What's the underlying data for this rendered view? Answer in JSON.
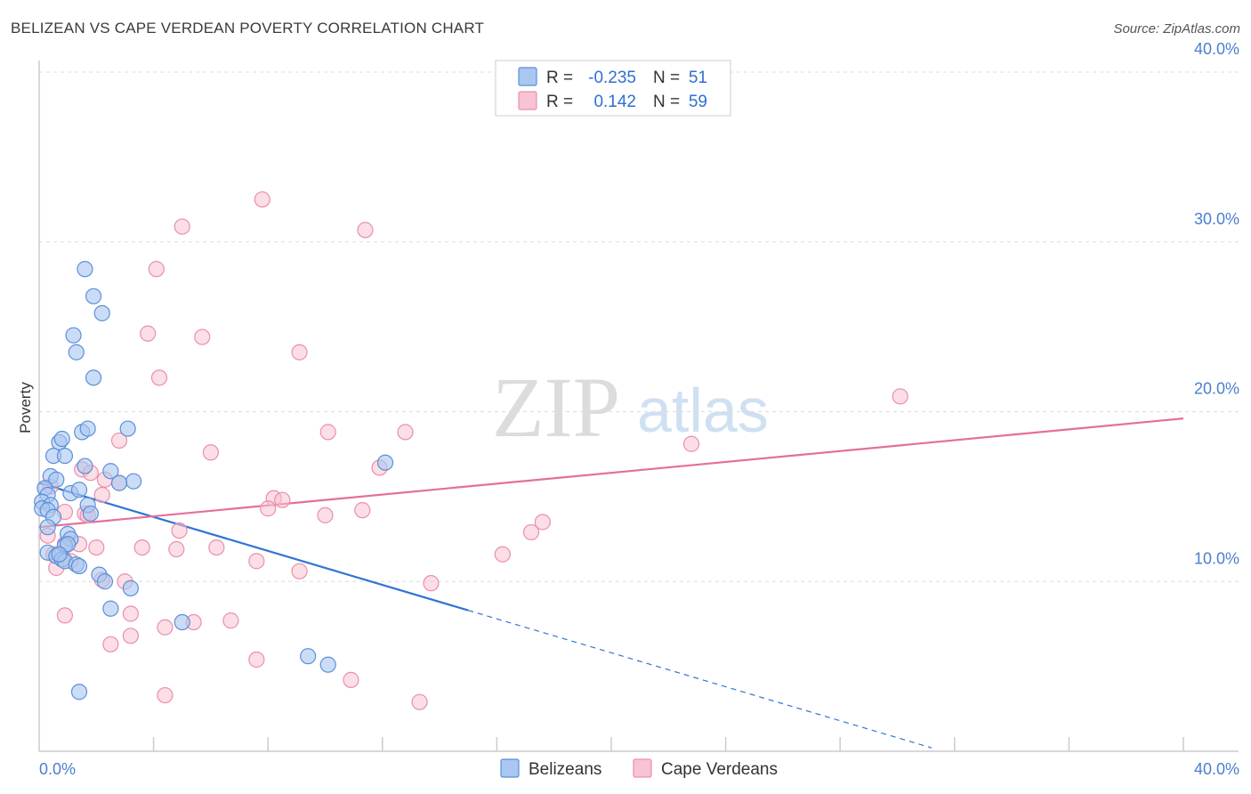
{
  "title": "BELIZEAN VS CAPE VERDEAN POVERTY CORRELATION CHART",
  "source": "Source: ZipAtlas.com",
  "watermark": {
    "part1": "ZIP",
    "part2": "atlas"
  },
  "legend": {
    "r_label": "R =",
    "n_label": "N =",
    "rows": [
      {
        "r": "-0.235",
        "n": "51"
      },
      {
        "r": "0.142",
        "n": "59"
      }
    ]
  },
  "colors": {
    "belizean_fill": "#a9c7f0",
    "belizean_stroke": "#5b8fd9",
    "belizean_line": "#2f74d3",
    "capeverdean_fill": "#f8c3d2",
    "capeverdean_stroke": "#ea8fab",
    "capeverdean_line": "#e56f99",
    "grid": "#dcdcdc",
    "tick_text": "#4a7fd0"
  },
  "chart_data": {
    "type": "scatter",
    "title": "BELIZEAN VS CAPE VERDEAN POVERTY CORRELATION CHART",
    "xlabel": "",
    "ylabel": "Poverty",
    "xlim": [
      0,
      40
    ],
    "ylim": [
      0,
      40
    ],
    "x_tick_labels": [
      "0.0%",
      "40.0%"
    ],
    "y_ticks": [
      10,
      20,
      30,
      40
    ],
    "y_tick_labels": [
      "10.0%",
      "20.0%",
      "30.0%",
      "40.0%"
    ],
    "grid": "horizontal dashed",
    "series": [
      {
        "name": "Belizeans",
        "r": -0.235,
        "n": 51,
        "trend": {
          "x0": 0.0,
          "y0": 15.8,
          "x1": 15.0,
          "y1": 8.3,
          "dashed_to_x": 31.2
        },
        "points": [
          [
            1.6,
            28.4
          ],
          [
            1.9,
            26.8
          ],
          [
            2.2,
            25.8
          ],
          [
            1.2,
            24.5
          ],
          [
            1.3,
            23.5
          ],
          [
            1.9,
            22.0
          ],
          [
            1.5,
            18.8
          ],
          [
            1.7,
            19.0
          ],
          [
            3.1,
            19.0
          ],
          [
            0.7,
            18.2
          ],
          [
            0.8,
            18.4
          ],
          [
            0.5,
            17.4
          ],
          [
            0.9,
            17.4
          ],
          [
            1.6,
            16.8
          ],
          [
            2.5,
            16.5
          ],
          [
            0.4,
            16.2
          ],
          [
            0.6,
            16.0
          ],
          [
            3.3,
            15.9
          ],
          [
            2.8,
            15.8
          ],
          [
            0.2,
            15.5
          ],
          [
            1.1,
            15.2
          ],
          [
            1.4,
            15.4
          ],
          [
            0.3,
            15.1
          ],
          [
            0.1,
            14.7
          ],
          [
            0.4,
            14.5
          ],
          [
            0.1,
            14.3
          ],
          [
            1.7,
            14.5
          ],
          [
            0.3,
            14.2
          ],
          [
            1.8,
            14.0
          ],
          [
            0.5,
            13.8
          ],
          [
            0.3,
            13.2
          ],
          [
            1.0,
            12.8
          ],
          [
            1.1,
            12.5
          ],
          [
            0.9,
            12.1
          ],
          [
            0.3,
            11.7
          ],
          [
            0.6,
            11.5
          ],
          [
            0.8,
            11.3
          ],
          [
            0.9,
            11.2
          ],
          [
            1.3,
            11.0
          ],
          [
            1.4,
            10.9
          ],
          [
            2.1,
            10.4
          ],
          [
            2.3,
            10.0
          ],
          [
            3.2,
            9.6
          ],
          [
            2.5,
            8.4
          ],
          [
            5.0,
            7.6
          ],
          [
            9.4,
            5.6
          ],
          [
            10.1,
            5.1
          ],
          [
            1.4,
            3.5
          ],
          [
            12.1,
            17.0
          ],
          [
            1.0,
            12.2
          ],
          [
            0.7,
            11.6
          ]
        ]
      },
      {
        "name": "Cape Verdeans",
        "r": 0.142,
        "n": 59,
        "trend": {
          "x0": 0.0,
          "y0": 13.2,
          "x1": 40.0,
          "y1": 19.6
        },
        "points": [
          [
            7.8,
            32.5
          ],
          [
            5.0,
            30.9
          ],
          [
            11.4,
            30.7
          ],
          [
            4.1,
            28.4
          ],
          [
            3.8,
            24.6
          ],
          [
            5.7,
            24.4
          ],
          [
            9.1,
            23.5
          ],
          [
            4.2,
            22.0
          ],
          [
            30.1,
            20.9
          ],
          [
            10.1,
            18.8
          ],
          [
            12.8,
            18.8
          ],
          [
            2.8,
            18.3
          ],
          [
            22.8,
            18.1
          ],
          [
            6.0,
            17.6
          ],
          [
            11.9,
            16.7
          ],
          [
            1.5,
            16.6
          ],
          [
            1.8,
            16.4
          ],
          [
            2.3,
            16.0
          ],
          [
            2.8,
            15.8
          ],
          [
            2.2,
            15.1
          ],
          [
            8.2,
            14.9
          ],
          [
            8.5,
            14.8
          ],
          [
            8.0,
            14.3
          ],
          [
            11.3,
            14.2
          ],
          [
            1.6,
            14.0
          ],
          [
            0.9,
            14.1
          ],
          [
            1.7,
            13.9
          ],
          [
            10.0,
            13.9
          ],
          [
            17.6,
            13.5
          ],
          [
            4.9,
            13.0
          ],
          [
            17.2,
            12.9
          ],
          [
            0.3,
            12.7
          ],
          [
            0.9,
            12.2
          ],
          [
            1.4,
            12.2
          ],
          [
            2.0,
            12.0
          ],
          [
            3.6,
            12.0
          ],
          [
            4.8,
            11.9
          ],
          [
            6.2,
            12.0
          ],
          [
            0.5,
            11.6
          ],
          [
            16.2,
            11.6
          ],
          [
            7.6,
            11.2
          ],
          [
            1.1,
            11.2
          ],
          [
            0.6,
            10.8
          ],
          [
            9.1,
            10.6
          ],
          [
            2.2,
            10.1
          ],
          [
            3.0,
            10.0
          ],
          [
            13.7,
            9.9
          ],
          [
            0.9,
            8.0
          ],
          [
            3.2,
            8.1
          ],
          [
            6.7,
            7.7
          ],
          [
            4.4,
            7.3
          ],
          [
            5.4,
            7.6
          ],
          [
            3.2,
            6.8
          ],
          [
            2.5,
            6.3
          ],
          [
            7.6,
            5.4
          ],
          [
            4.4,
            3.3
          ],
          [
            10.9,
            4.2
          ],
          [
            13.3,
            2.9
          ],
          [
            0.4,
            15.6
          ]
        ]
      }
    ]
  }
}
